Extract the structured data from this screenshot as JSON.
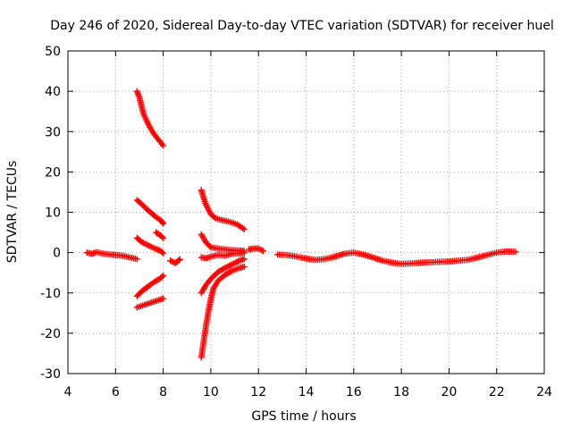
{
  "chart_data": {
    "type": "scatter",
    "title": "Day 246 of 2020, Sidereal Day-to-day VTEC variation (SDTVAR) for receiver huel",
    "xlabel": "GPS time / hours",
    "ylabel": "SDTVAR / TECUs",
    "xlim": [
      4,
      24
    ],
    "ylim": [
      -30,
      50
    ],
    "xticks": [
      4,
      6,
      8,
      10,
      12,
      14,
      16,
      18,
      20,
      22,
      24
    ],
    "yticks": [
      -30,
      -20,
      -10,
      0,
      10,
      20,
      30,
      40,
      50
    ],
    "grid": true,
    "marker": "plus",
    "color": "#ff0000",
    "series": [
      {
        "name": "arc-main-1",
        "x": [
          4.8,
          5.0,
          5.2,
          5.5,
          5.8,
          6.0,
          6.3,
          6.6,
          6.9
        ],
        "y": [
          0.0,
          -0.3,
          0.1,
          -0.3,
          -0.5,
          -0.6,
          -0.8,
          -1.2,
          -1.6
        ]
      },
      {
        "name": "arc-rise-high",
        "x": [
          6.9,
          7.0,
          7.1,
          7.2,
          7.4,
          7.6,
          7.8,
          8.0
        ],
        "y": [
          40.0,
          38.5,
          36.0,
          34.0,
          31.5,
          29.5,
          28.0,
          26.5
        ]
      },
      {
        "name": "arc-mid-13",
        "x": [
          6.9,
          7.1,
          7.3,
          7.5,
          7.7,
          7.9,
          8.0
        ],
        "y": [
          13.0,
          12.0,
          10.8,
          9.8,
          8.8,
          8.0,
          7.2
        ]
      },
      {
        "name": "arc-small-5",
        "x": [
          7.7,
          7.8,
          7.9,
          8.0
        ],
        "y": [
          5.0,
          4.6,
          4.2,
          3.6
        ]
      },
      {
        "name": "arc-mid-3",
        "x": [
          6.9,
          7.1,
          7.3,
          7.5,
          7.7,
          7.9,
          8.0
        ],
        "y": [
          3.6,
          2.6,
          2.0,
          1.4,
          0.9,
          0.4,
          -0.2
        ]
      },
      {
        "name": "arc-neg-10",
        "x": [
          6.9,
          7.1,
          7.3,
          7.5,
          7.7,
          7.9,
          8.0
        ],
        "y": [
          -10.8,
          -9.6,
          -8.7,
          -7.8,
          -7.0,
          -6.3,
          -5.7
        ]
      },
      {
        "name": "arc-neg-13",
        "x": [
          6.9,
          7.2,
          7.5,
          7.8,
          8.0
        ],
        "y": [
          -13.6,
          -13.0,
          -12.4,
          -11.8,
          -11.4
        ]
      },
      {
        "name": "arc-8h",
        "x": [
          8.3,
          8.5,
          8.7
        ],
        "y": [
          -2.0,
          -2.6,
          -1.7
        ]
      },
      {
        "name": "arc-9-5-high",
        "x": [
          9.6,
          9.7,
          9.8,
          10.0,
          10.2,
          10.5,
          10.8,
          11.1,
          11.4
        ],
        "y": [
          15.5,
          13.5,
          11.8,
          9.5,
          8.5,
          8.0,
          7.6,
          7.0,
          5.8
        ]
      },
      {
        "name": "arc-9-5-low",
        "x": [
          9.6,
          9.7,
          9.8,
          9.9,
          10.0,
          10.1,
          10.3,
          10.6,
          10.9,
          11.2,
          11.4
        ],
        "y": [
          -26.0,
          -22.0,
          -18.0,
          -14.5,
          -11.5,
          -9.0,
          -7.0,
          -5.5,
          -4.5,
          -3.8,
          -3.5
        ]
      },
      {
        "name": "arc-9-5-mid",
        "x": [
          9.6,
          9.8,
          10.0,
          10.3,
          10.6,
          10.9,
          11.2,
          11.4
        ],
        "y": [
          -10.0,
          -8.0,
          -6.5,
          -4.8,
          -3.8,
          -2.9,
          -2.0,
          -1.6
        ]
      },
      {
        "name": "arc-9-5-near0",
        "x": [
          9.6,
          9.8,
          10.0,
          10.3,
          10.6,
          10.9,
          11.2,
          11.4
        ],
        "y": [
          4.5,
          2.5,
          1.3,
          1.0,
          0.8,
          0.6,
          0.5,
          0.4
        ]
      },
      {
        "name": "arc-9-5-near0b",
        "x": [
          9.6,
          9.8,
          10.0,
          10.3,
          10.6,
          10.9,
          11.2,
          11.4
        ],
        "y": [
          -1.2,
          -1.4,
          -1.0,
          -0.6,
          -0.8,
          -0.3,
          -0.2,
          0.0
        ]
      },
      {
        "name": "arc-12",
        "x": [
          11.6,
          11.8,
          12.0,
          12.2
        ],
        "y": [
          0.8,
          1.0,
          1.0,
          0.4
        ]
      },
      {
        "name": "arc-main-2",
        "x": [
          12.8,
          13.2,
          13.6,
          14.0,
          14.4,
          14.8,
          15.2,
          15.6,
          16.0,
          16.4,
          16.8,
          17.2,
          17.6,
          18.0,
          18.4,
          18.8,
          19.2,
          19.6,
          20.0,
          20.4,
          20.8,
          21.2,
          21.6,
          22.0,
          22.4,
          22.8
        ],
        "y": [
          -0.5,
          -0.6,
          -1.0,
          -1.5,
          -1.8,
          -1.6,
          -1.0,
          -0.3,
          0.0,
          -0.5,
          -1.2,
          -2.0,
          -2.5,
          -2.8,
          -2.7,
          -2.5,
          -2.4,
          -2.3,
          -2.2,
          -2.0,
          -1.8,
          -1.2,
          -0.6,
          0.0,
          0.3,
          0.2
        ]
      }
    ]
  }
}
